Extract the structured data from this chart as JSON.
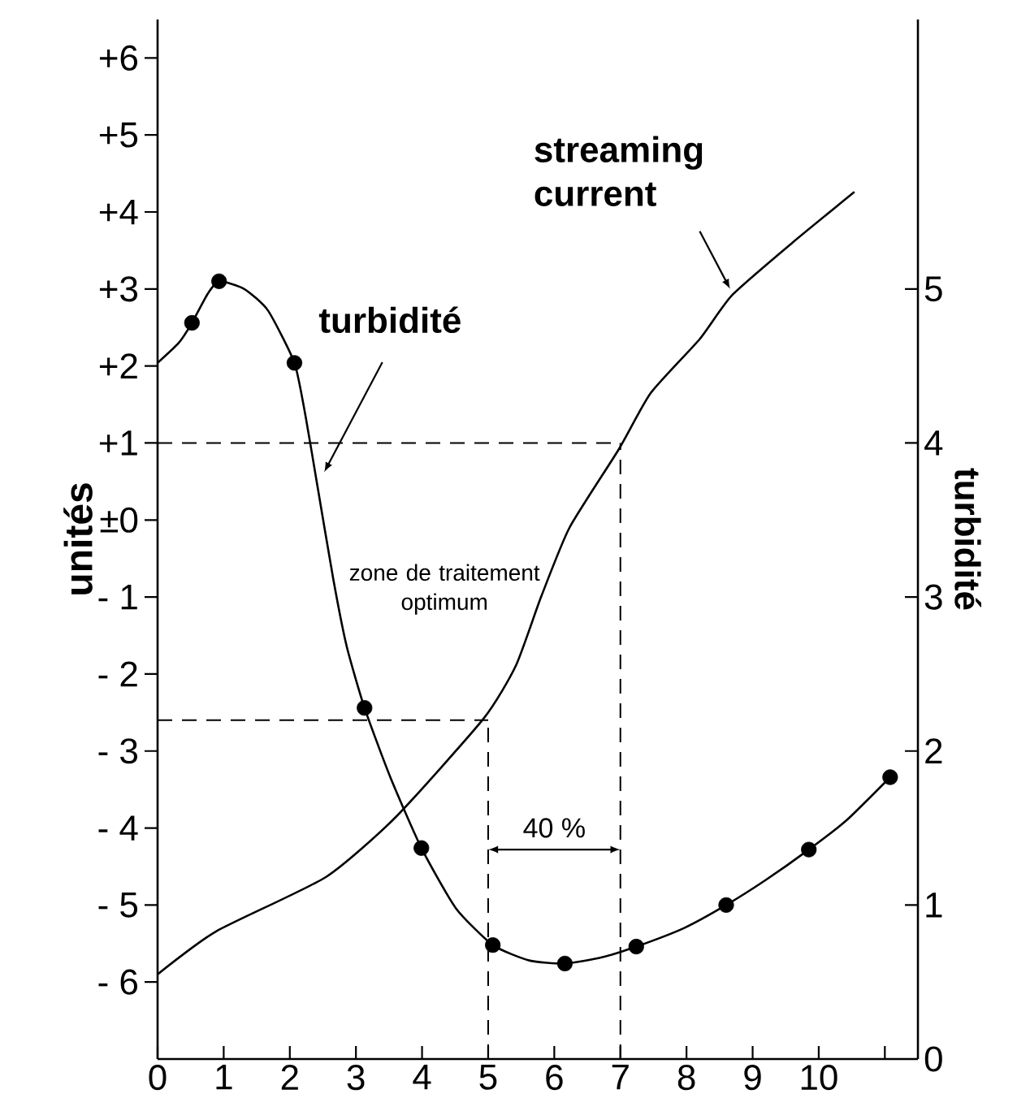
{
  "chart_data": {
    "type": "line",
    "ylabel": "unités",
    "y2label": "turbidité",
    "xlim": [
      0,
      11.5
    ],
    "xticks": [
      0,
      1,
      2,
      3,
      4,
      5,
      6,
      7,
      8,
      9,
      10,
      {
        "value": 11,
        "label": null
      }
    ],
    "ylim": [
      -7,
      6.5
    ],
    "yticks": [
      {
        "value": 6,
        "label": "+6"
      },
      {
        "value": 5,
        "label": "+5"
      },
      {
        "value": 4,
        "label": "+4"
      },
      {
        "value": 3,
        "label": "+3"
      },
      {
        "value": 2,
        "label": "+2"
      },
      {
        "value": 1,
        "label": "+1"
      },
      {
        "value": 0,
        "label": "±0"
      },
      {
        "value": -1,
        "label": "- 1"
      },
      {
        "value": -2,
        "label": "- 2"
      },
      {
        "value": -3,
        "label": "- 3"
      },
      {
        "value": -4,
        "label": "- 4"
      },
      {
        "value": -5,
        "label": "- 5"
      },
      {
        "value": -6,
        "label": "- 6"
      }
    ],
    "y2lim": [
      0,
      6.75
    ],
    "y2ticks": [
      0,
      1,
      2,
      3,
      4,
      5
    ],
    "series": [
      {
        "name": "streaming current",
        "color": "#000000",
        "x": [
          0,
          0.89,
          2.54,
          3.6,
          4.93,
          5.42,
          5.8,
          6.23,
          6.97,
          7.46,
          8.2,
          8.69,
          9.6,
          10.54
        ],
        "values": [
          -5.9,
          -5.34,
          -4.64,
          -3.86,
          -2.58,
          -1.89,
          -1.0,
          -0.1,
          0.91,
          1.65,
          2.35,
          2.92,
          3.6,
          4.26
        ]
      },
      {
        "name": "turbidité",
        "axis": "y2",
        "color": "#000000",
        "x": [
          0,
          0.32,
          0.52,
          0.76,
          0.93,
          1.31,
          1.67,
          2.07,
          2.24,
          2.41,
          2.66,
          2.86,
          3.13,
          3.52,
          3.99,
          4.51,
          5.07,
          5.62,
          6.16,
          6.72,
          7.24,
          7.96,
          8.6,
          9.19,
          9.85,
          10.42,
          11.08
        ],
        "values": [
          4.52,
          4.65,
          4.78,
          4.97,
          5.05,
          5.0,
          4.86,
          4.52,
          4.17,
          3.74,
          3.11,
          2.68,
          2.28,
          1.83,
          1.37,
          0.98,
          0.74,
          0.64,
          0.62,
          0.66,
          0.73,
          0.85,
          1.0,
          1.16,
          1.36,
          1.55,
          1.83
        ]
      },
      {
        "type": "scatter",
        "axis": "y2",
        "color": "#000000",
        "marker": "circle",
        "x": [
          0.52,
          0.93,
          2.07,
          3.13,
          3.99,
          5.07,
          6.16,
          7.24,
          8.6,
          9.85,
          11.08
        ],
        "values": [
          4.78,
          5.05,
          4.52,
          2.28,
          1.37,
          0.74,
          0.62,
          0.73,
          1.0,
          1.36,
          1.83
        ]
      }
    ],
    "ref_lines": [
      {
        "axis": "y",
        "value": 1,
        "line_style": "dashed"
      },
      {
        "axis": "y",
        "value": -2.6,
        "line_style": "dashed"
      },
      {
        "axis": "x",
        "value": 7,
        "line_style": "dashed"
      },
      {
        "axis": "x",
        "value": 5,
        "line_style": "dashed"
      }
    ],
    "annotations": [
      "zone de traitement optimum",
      "40 %"
    ]
  }
}
